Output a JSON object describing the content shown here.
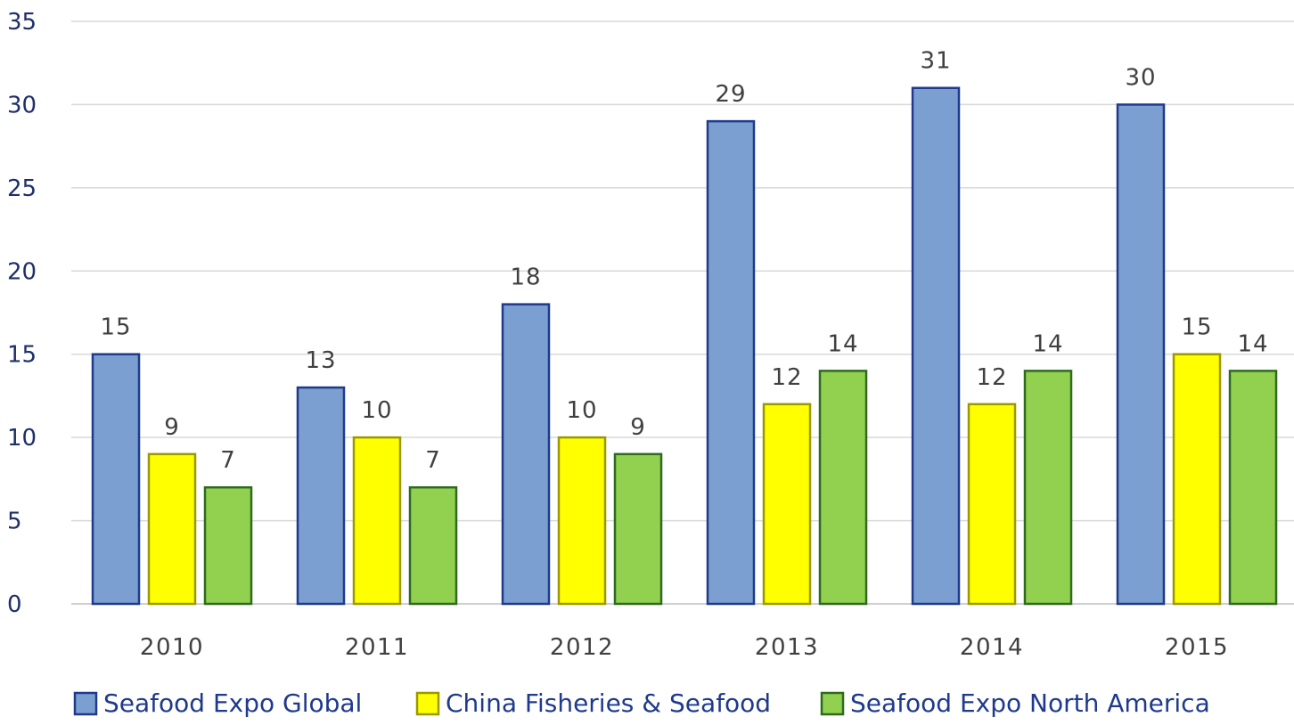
{
  "chart_data": {
    "type": "bar",
    "categories": [
      "2010",
      "2011",
      "2012",
      "2013",
      "2014",
      "2015"
    ],
    "series": [
      {
        "name": "Seafood Expo Global",
        "values": [
          15,
          13,
          18,
          29,
          31,
          30
        ],
        "color": "#7b9fd0",
        "stroke": "#1f3a8c"
      },
      {
        "name": "China Fisheries & Seafood",
        "values": [
          9,
          10,
          10,
          12,
          12,
          15
        ],
        "color": "#ffff00",
        "stroke": "#9a9a00"
      },
      {
        "name": "Seafood Expo North America",
        "values": [
          7,
          7,
          9,
          14,
          14,
          14
        ],
        "color": "#92d050",
        "stroke": "#2e6b1f"
      }
    ],
    "yticks": [
      "0",
      "5",
      "10",
      "15",
      "20",
      "25",
      "30",
      "35"
    ],
    "ylim": [
      0,
      35
    ],
    "grid": true,
    "legend_position": "bottom",
    "data_labels": true
  }
}
